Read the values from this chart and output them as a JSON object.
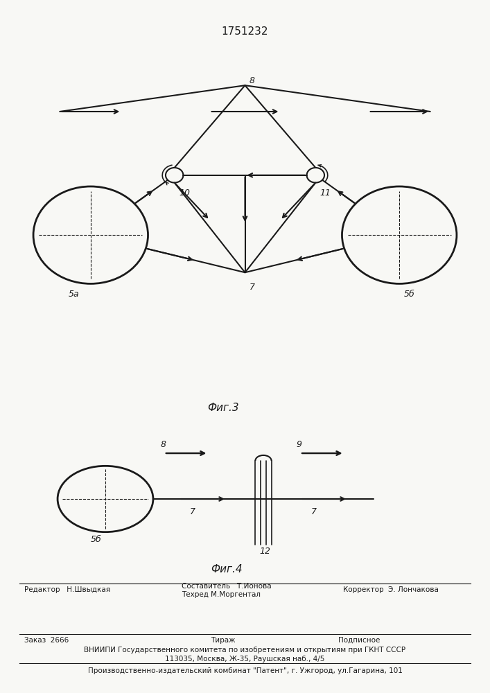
{
  "title": "1751232",
  "fig3_label": "Фиг.3",
  "fig4_label": "Фиг.4",
  "bg_color": "#f8f8f5",
  "line_color": "#1a1a1a",
  "font_size_title": 11,
  "font_size_label": 10,
  "font_size_small": 9,
  "font_size_footer": 7.5
}
